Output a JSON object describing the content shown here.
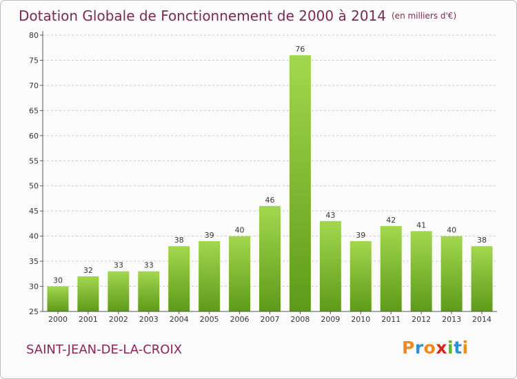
{
  "title": {
    "main": "Dotation Globale de Fonctionnement de 2000 à 2014",
    "unit": "(en milliers d'€)"
  },
  "commune": "SAINT-JEAN-DE-LA-CROIX",
  "logo": {
    "letters": [
      "P",
      "r",
      "o",
      "x",
      "i",
      "t",
      "i"
    ],
    "colors": [
      "#f08a1c",
      "#2d8fd6",
      "#f08a1c",
      "#d9261c",
      "#5db52e",
      "#2d8fd6",
      "#f08a1c"
    ]
  },
  "colors": {
    "bar_light": "#a3d74f",
    "bar_dark": "#5e9a1a",
    "grid": "#c8c8c8",
    "title": "#7a2a52"
  },
  "chart_data": {
    "type": "bar",
    "categories": [
      "2000",
      "2001",
      "2002",
      "2003",
      "2004",
      "2005",
      "2006",
      "2007",
      "2008",
      "2009",
      "2010",
      "2011",
      "2012",
      "2013",
      "2014"
    ],
    "values": [
      30,
      32,
      33,
      33,
      38,
      39,
      40,
      46,
      76,
      43,
      39,
      42,
      41,
      40,
      38
    ],
    "title": "Dotation Globale de Fonctionnement de 2000 à 2014",
    "subtitle": "(en milliers d'€)",
    "xlabel": "",
    "ylabel": "",
    "ylim": [
      25,
      80
    ],
    "yticks": [
      25,
      30,
      35,
      40,
      45,
      50,
      55,
      60,
      65,
      70,
      75,
      80
    ],
    "grid": "horizontal dashed",
    "legend": "none"
  }
}
